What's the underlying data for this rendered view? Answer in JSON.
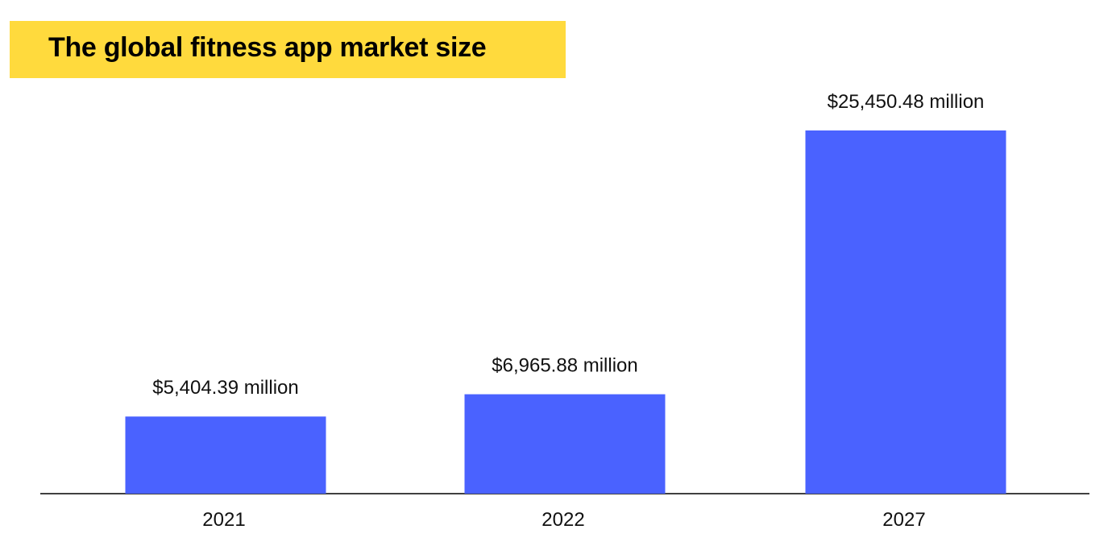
{
  "chart_data": {
    "type": "bar",
    "title": "The global fitness app market size",
    "categories": [
      "2021",
      "2022",
      "2027"
    ],
    "values": [
      5404.39,
      6965.88,
      25450.48
    ],
    "data_labels": [
      "$5,404.39 million",
      "$6,965.88 million",
      "$25,450.48 million"
    ],
    "xlabel": "",
    "ylabel": "",
    "ylim": [
      0,
      25450.48
    ],
    "grid": false,
    "bar_color": "#4A62FF",
    "title_bg_color": "#FFDA3D"
  }
}
